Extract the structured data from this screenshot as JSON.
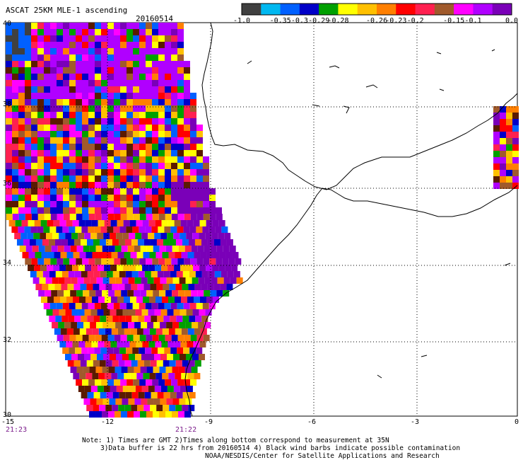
{
  "header": {
    "title": "ASCAT 25KM MLE-1 ascending",
    "date": "20160514"
  },
  "colorbar": {
    "colors": [
      "#404040",
      "#00b8f0",
      "#0060ff",
      "#0000c8",
      "#00a000",
      "#ffff00",
      "#ffc000",
      "#ff7f00",
      "#ff0000",
      "#ff2050",
      "#a05a2c",
      "#ff00ff",
      "#b000ff",
      "#7a00b8"
    ],
    "labels": [
      "-1.0",
      "-0.35",
      "-0.3",
      "-0.29",
      "-0.28",
      "-0.26",
      "-0.23",
      "-0.2",
      "-0.15",
      "-0.1",
      "0.0"
    ]
  },
  "map": {
    "lat_labels": [
      "40",
      "38",
      "36",
      "34",
      "32",
      "30"
    ],
    "lon_labels": [
      "-15",
      "-12",
      "-9",
      "-6",
      "-3",
      "0"
    ],
    "time_labels": [
      "21:23",
      "21:22"
    ]
  },
  "footer": {
    "line1": "Note: 1) Times are GMT 2)Times along bottom correspond to measurement at 35N",
    "line2": "3)Data buffer is 22 hrs from 20160514 4) Black wind barbs indicate possible contamination",
    "line3": "NOAA/NESDIS/Center for Satellite Applications and Research"
  }
}
